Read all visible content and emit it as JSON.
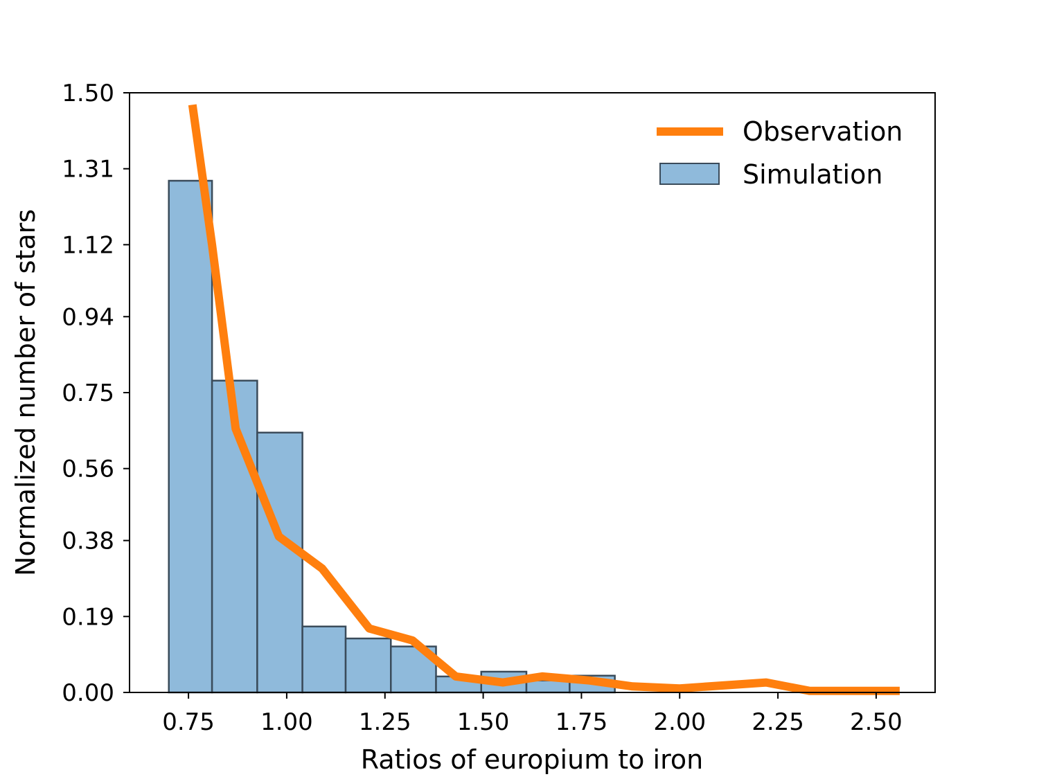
{
  "chart_data": {
    "type": "bar",
    "xlabel": "Ratios of europium to iron",
    "ylabel": "Normalized number of stars",
    "xlim": [
      0.6,
      2.65
    ],
    "ylim": [
      0.0,
      1.5
    ],
    "x_ticks": [
      "0.75",
      "1.00",
      "1.25",
      "1.50",
      "1.75",
      "2.00",
      "2.25",
      "2.50"
    ],
    "y_ticks": [
      "0.00",
      "0.19",
      "0.38",
      "0.56",
      "0.75",
      "0.94",
      "1.12",
      "1.31",
      "1.50"
    ],
    "legend": {
      "position": "top-right",
      "entries": [
        "Observation",
        "Simulation"
      ]
    },
    "series": [
      {
        "name": "Simulation",
        "kind": "histogram",
        "color": "#8fbadb",
        "edge_color": "#3a4b5a",
        "bins": [
          {
            "x0": 0.7,
            "x1": 0.81,
            "y": 1.28
          },
          {
            "x0": 0.81,
            "x1": 0.925,
            "y": 0.78
          },
          {
            "x0": 0.925,
            "x1": 1.04,
            "y": 0.65
          },
          {
            "x0": 1.04,
            "x1": 1.15,
            "y": 0.165
          },
          {
            "x0": 1.15,
            "x1": 1.265,
            "y": 0.135
          },
          {
            "x0": 1.265,
            "x1": 1.38,
            "y": 0.115
          },
          {
            "x0": 1.38,
            "x1": 1.495,
            "y": 0.04
          },
          {
            "x0": 1.495,
            "x1": 1.61,
            "y": 0.052
          },
          {
            "x0": 1.61,
            "x1": 1.72,
            "y": 0.03
          },
          {
            "x0": 1.72,
            "x1": 1.835,
            "y": 0.042
          }
        ]
      },
      {
        "name": "Observation",
        "kind": "line",
        "color": "#ff7f0e",
        "points": [
          {
            "x": 0.76,
            "y": 1.47
          },
          {
            "x": 0.81,
            "y": 1.12
          },
          {
            "x": 0.87,
            "y": 0.66
          },
          {
            "x": 0.98,
            "y": 0.39
          },
          {
            "x": 1.09,
            "y": 0.31
          },
          {
            "x": 1.21,
            "y": 0.16
          },
          {
            "x": 1.32,
            "y": 0.13
          },
          {
            "x": 1.43,
            "y": 0.04
          },
          {
            "x": 1.55,
            "y": 0.025
          },
          {
            "x": 1.65,
            "y": 0.04
          },
          {
            "x": 1.77,
            "y": 0.03
          },
          {
            "x": 1.88,
            "y": 0.015
          },
          {
            "x": 2.0,
            "y": 0.01
          },
          {
            "x": 2.22,
            "y": 0.025
          },
          {
            "x": 2.33,
            "y": 0.004
          },
          {
            "x": 2.56,
            "y": 0.004
          }
        ]
      }
    ]
  }
}
